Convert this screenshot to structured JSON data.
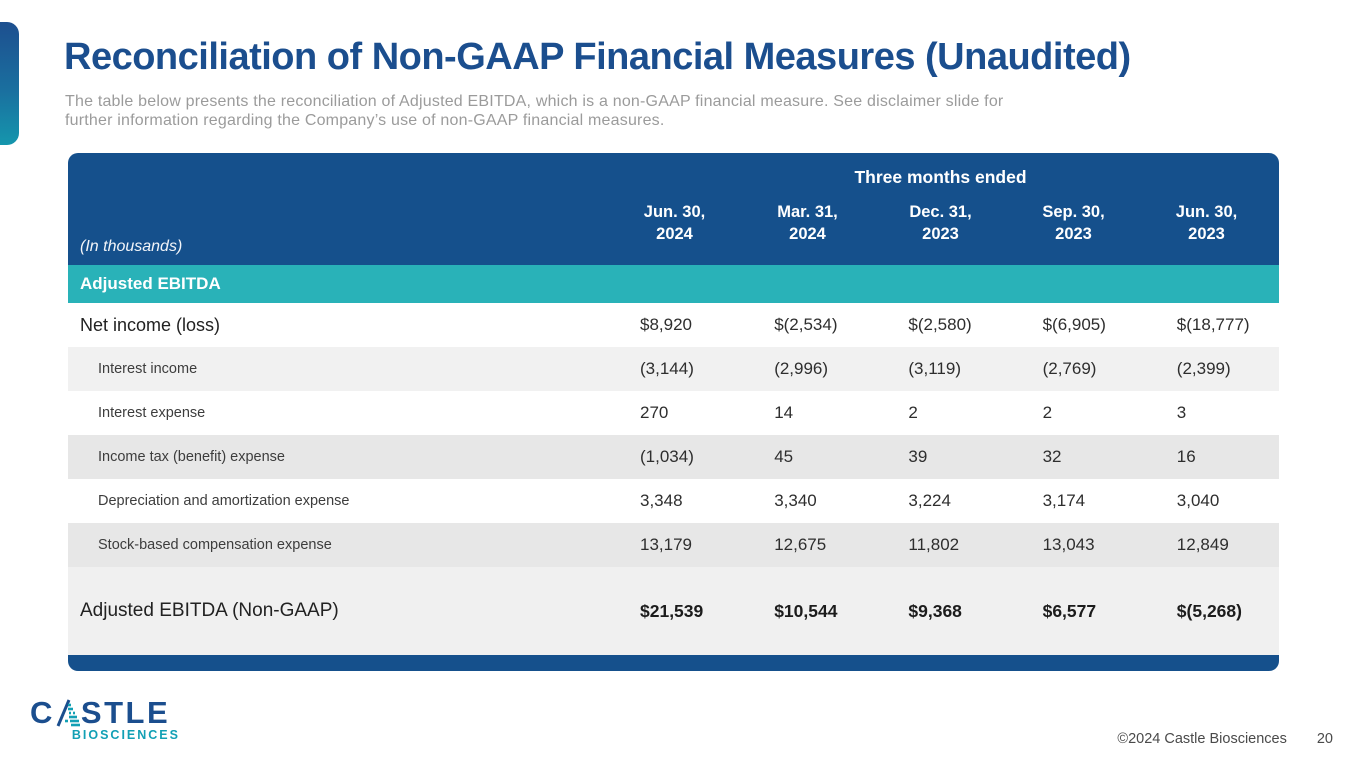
{
  "slide": {
    "title": "Reconciliation of Non-GAAP Financial Measures (Unaudited)",
    "subtitle_line1": "The table below presents the reconciliation of Adjusted EBITDA, which is a non-GAAP financial measure. See disclaimer slide for",
    "subtitle_line2": "further information regarding the Company’s use of non-GAAP financial measures."
  },
  "table": {
    "group_header": "Three months ended",
    "unit_note": "(In thousands)",
    "columns": [
      {
        "line1": "Jun. 30,",
        "line2": "2024"
      },
      {
        "line1": "Mar. 31,",
        "line2": "2024"
      },
      {
        "line1": "Dec. 31,",
        "line2": "2023"
      },
      {
        "line1": "Sep. 30,",
        "line2": "2023"
      },
      {
        "line1": "Jun. 30,",
        "line2": "2023"
      }
    ],
    "section_header": "Adjusted EBITDA",
    "rows": [
      {
        "label": "Net income (loss)",
        "indent": false,
        "shade": "white",
        "values": [
          "$8,920",
          "$(2,534)",
          "$(2,580)",
          "$(6,905)",
          "$(18,777)"
        ]
      },
      {
        "label": "Interest income",
        "indent": true,
        "shade": "light",
        "values": [
          "(3,144)",
          "(2,996)",
          "(3,119)",
          "(2,769)",
          "(2,399)"
        ]
      },
      {
        "label": "Interest expense",
        "indent": true,
        "shade": "white",
        "values": [
          "270",
          "14",
          "2",
          "2",
          "3"
        ]
      },
      {
        "label": "Income tax (benefit) expense",
        "indent": true,
        "shade": "mid",
        "values": [
          "(1,034)",
          "45",
          "39",
          "32",
          "16"
        ]
      },
      {
        "label": "Depreciation and amortization expense",
        "indent": true,
        "shade": "white",
        "values": [
          "3,348",
          "3,340",
          "3,224",
          "3,174",
          "3,040"
        ]
      },
      {
        "label": "Stock-based compensation expense",
        "indent": true,
        "shade": "mid",
        "values": [
          "13,179",
          "12,675",
          "11,802",
          "13,043",
          "12,849"
        ]
      }
    ],
    "total_row": {
      "label": "Adjusted EBITDA (Non-GAAP)",
      "values": [
        "$21,539",
        "$10,544",
        "$9,368",
        "$6,577",
        "$(5,268)"
      ]
    }
  },
  "logo": {
    "name_top": "CASTLE",
    "name_bottom": "BIOSCIENCES"
  },
  "footer": {
    "copyright": "©2024 Castle Biosciences",
    "page_number": "20"
  },
  "colors": {
    "header_blue": "#15508c",
    "title_blue": "#1b4e8e",
    "teal_band": "#29b2b8",
    "logo_teal": "#12a0b5",
    "row_light": "#f1f1f1",
    "row_mid": "#e7e7e7",
    "total_row_bg": "#f0f0f0",
    "subtitle_gray": "#9b9b9b"
  }
}
